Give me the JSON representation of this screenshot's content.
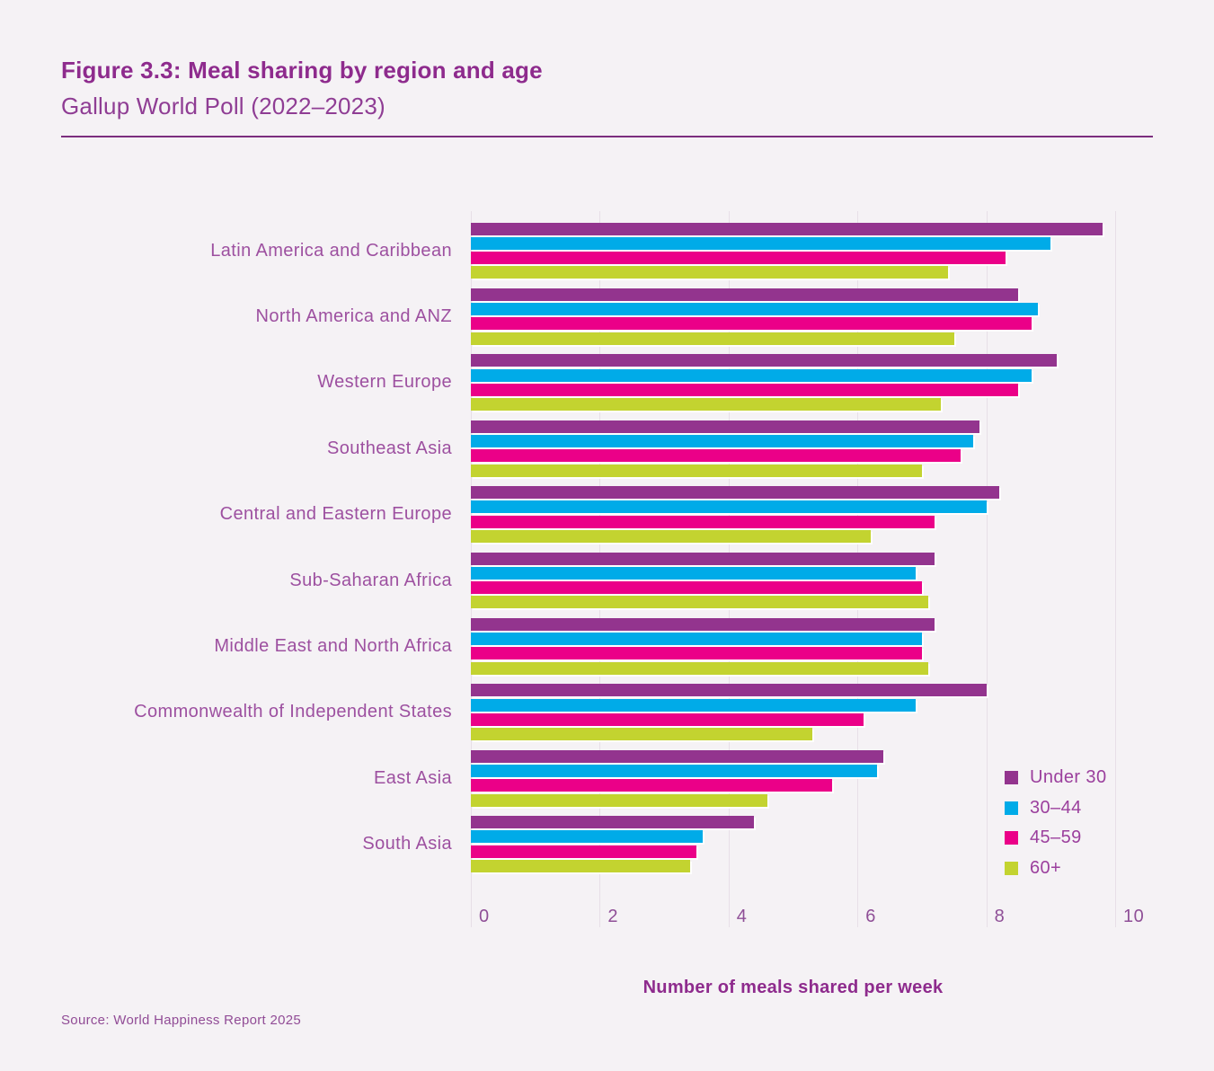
{
  "header": {
    "title": "Figure 3.3: Meal sharing by region and age",
    "subtitle": "Gallup World Poll (2022–2023)"
  },
  "source": "Source: World Happiness Report 2025",
  "colors": {
    "accent_purple": "#8e2b8d",
    "bar_under_30": "#93348e",
    "bar_30_44": "#00abe8",
    "bar_45_59": "#eb0088",
    "bar_60_plus": "#c3d330",
    "background": "#f5f2f5",
    "gridline": "#e7dfe7"
  },
  "chart_data": {
    "type": "bar",
    "orientation": "horizontal",
    "title": "Figure 3.3: Meal sharing by region and age",
    "subtitle": "Gallup World Poll (2022–2023)",
    "xlabel": "Number of meals shared per week",
    "ylabel": "",
    "xlim": [
      0,
      10
    ],
    "xticks": [
      0,
      2,
      4,
      6,
      8,
      10
    ],
    "grid": true,
    "legend_position": "inside-bottom-right",
    "categories": [
      "Latin America and Caribbean",
      "North America and ANZ",
      "Western Europe",
      "Southeast Asia",
      "Central and Eastern Europe",
      "Sub-Saharan Africa",
      "Middle East and North Africa",
      "Commonwealth of Independent States",
      "East Asia",
      "South Asia"
    ],
    "series": [
      {
        "name": "Under 30",
        "color": "#93348e",
        "values": [
          9.8,
          8.5,
          9.1,
          7.9,
          8.2,
          7.2,
          7.2,
          8.0,
          6.4,
          4.4
        ]
      },
      {
        "name": "30–44",
        "color": "#00abe8",
        "values": [
          9.0,
          8.8,
          8.7,
          7.8,
          8.0,
          6.9,
          7.0,
          6.9,
          6.3,
          3.6
        ]
      },
      {
        "name": "45–59",
        "color": "#eb0088",
        "values": [
          8.3,
          8.7,
          8.5,
          7.6,
          7.2,
          7.0,
          7.0,
          6.1,
          5.6,
          3.5
        ]
      },
      {
        "name": "60+",
        "color": "#c3d330",
        "values": [
          7.4,
          7.5,
          7.3,
          7.0,
          6.2,
          7.1,
          7.1,
          5.3,
          4.6,
          3.4
        ]
      }
    ]
  }
}
